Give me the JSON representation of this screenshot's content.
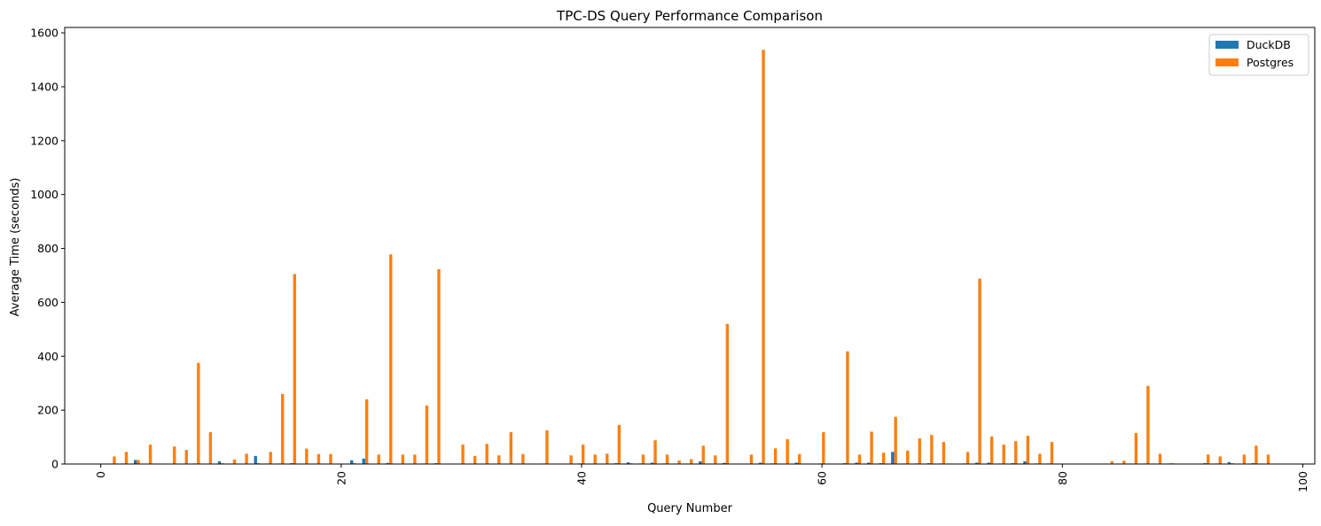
{
  "chart_data": {
    "type": "bar",
    "title": "TPC-DS Query Performance Comparison",
    "xlabel": "Query Number",
    "ylabel": "Average Time (seconds)",
    "xlim": [
      -3,
      101
    ],
    "ylim": [
      0,
      1620
    ],
    "xticks": [
      0,
      20,
      40,
      60,
      80,
      100
    ],
    "yticks": [
      0,
      200,
      400,
      600,
      800,
      1000,
      1200,
      1400,
      1600
    ],
    "legend_position": "top-right",
    "series": [
      {
        "name": "DuckDB",
        "color": "#1f77b4",
        "points": [
          [
            1,
            1
          ],
          [
            2,
            2
          ],
          [
            3,
            15
          ],
          [
            4,
            1
          ],
          [
            6,
            1
          ],
          [
            7,
            1
          ],
          [
            8,
            2
          ],
          [
            9,
            1
          ],
          [
            10,
            10
          ],
          [
            11,
            1
          ],
          [
            12,
            1
          ],
          [
            13,
            30
          ],
          [
            14,
            2
          ],
          [
            15,
            2
          ],
          [
            16,
            3
          ],
          [
            17,
            1
          ],
          [
            18,
            1
          ],
          [
            19,
            1
          ],
          [
            21,
            14
          ],
          [
            22,
            20
          ],
          [
            23,
            1
          ],
          [
            24,
            4
          ],
          [
            25,
            1
          ],
          [
            26,
            1
          ],
          [
            27,
            2
          ],
          [
            28,
            3
          ],
          [
            30,
            1
          ],
          [
            31,
            1
          ],
          [
            32,
            1
          ],
          [
            33,
            1
          ],
          [
            34,
            1
          ],
          [
            35,
            1
          ],
          [
            37,
            2
          ],
          [
            39,
            1
          ],
          [
            40,
            2
          ],
          [
            41,
            1
          ],
          [
            42,
            1
          ],
          [
            43,
            3
          ],
          [
            44,
            6
          ],
          [
            45,
            2
          ],
          [
            46,
            5
          ],
          [
            47,
            2
          ],
          [
            48,
            1
          ],
          [
            49,
            1
          ],
          [
            50,
            10
          ],
          [
            51,
            1
          ],
          [
            52,
            4
          ],
          [
            54,
            1
          ],
          [
            55,
            5
          ],
          [
            56,
            2
          ],
          [
            57,
            1
          ],
          [
            58,
            5
          ],
          [
            60,
            2
          ],
          [
            62,
            3
          ],
          [
            63,
            5
          ],
          [
            64,
            5
          ],
          [
            65,
            3
          ],
          [
            66,
            45
          ],
          [
            67,
            2
          ],
          [
            68,
            2
          ],
          [
            69,
            3
          ],
          [
            70,
            2
          ],
          [
            72,
            2
          ],
          [
            73,
            5
          ],
          [
            74,
            5
          ],
          [
            75,
            2
          ],
          [
            76,
            3
          ],
          [
            77,
            10
          ],
          [
            78,
            2
          ],
          [
            79,
            2
          ],
          [
            84,
            1
          ],
          [
            85,
            1
          ],
          [
            86,
            1
          ],
          [
            87,
            2
          ],
          [
            88,
            1
          ],
          [
            89,
            2
          ],
          [
            92,
            3
          ],
          [
            93,
            2
          ],
          [
            94,
            7
          ],
          [
            95,
            1
          ],
          [
            96,
            3
          ],
          [
            97,
            1
          ]
        ]
      },
      {
        "name": "Postgres",
        "color": "#ff7f0e",
        "points": [
          [
            1,
            28
          ],
          [
            2,
            45
          ],
          [
            3,
            15
          ],
          [
            4,
            72
          ],
          [
            6,
            65
          ],
          [
            7,
            52
          ],
          [
            8,
            375
          ],
          [
            9,
            118
          ],
          [
            10,
            3
          ],
          [
            11,
            17
          ],
          [
            12,
            38
          ],
          [
            13,
            3
          ],
          [
            14,
            45
          ],
          [
            15,
            260
          ],
          [
            16,
            705
          ],
          [
            17,
            57
          ],
          [
            18,
            37
          ],
          [
            19,
            37
          ],
          [
            21,
            3
          ],
          [
            22,
            240
          ],
          [
            23,
            35
          ],
          [
            24,
            778
          ],
          [
            25,
            35
          ],
          [
            26,
            35
          ],
          [
            27,
            217
          ],
          [
            28,
            723
          ],
          [
            30,
            72
          ],
          [
            31,
            30
          ],
          [
            32,
            75
          ],
          [
            33,
            32
          ],
          [
            34,
            118
          ],
          [
            35,
            37
          ],
          [
            37,
            125
          ],
          [
            39,
            32
          ],
          [
            40,
            72
          ],
          [
            41,
            35
          ],
          [
            42,
            38
          ],
          [
            43,
            145
          ],
          [
            44,
            3
          ],
          [
            45,
            35
          ],
          [
            46,
            88
          ],
          [
            47,
            35
          ],
          [
            48,
            13
          ],
          [
            49,
            18
          ],
          [
            50,
            68
          ],
          [
            51,
            32
          ],
          [
            52,
            520
          ],
          [
            54,
            35
          ],
          [
            55,
            1537
          ],
          [
            56,
            58
          ],
          [
            57,
            92
          ],
          [
            58,
            37
          ],
          [
            60,
            118
          ],
          [
            62,
            418
          ],
          [
            63,
            35
          ],
          [
            64,
            120
          ],
          [
            65,
            42
          ],
          [
            66,
            175
          ],
          [
            67,
            50
          ],
          [
            68,
            95
          ],
          [
            69,
            108
          ],
          [
            70,
            82
          ],
          [
            72,
            45
          ],
          [
            73,
            688
          ],
          [
            74,
            102
          ],
          [
            75,
            72
          ],
          [
            76,
            85
          ],
          [
            77,
            105
          ],
          [
            78,
            38
          ],
          [
            79,
            82
          ],
          [
            84,
            10
          ],
          [
            85,
            12
          ],
          [
            86,
            115
          ],
          [
            87,
            290
          ],
          [
            88,
            38
          ],
          [
            89,
            3
          ],
          [
            92,
            35
          ],
          [
            93,
            28
          ],
          [
            94,
            3
          ],
          [
            95,
            35
          ],
          [
            96,
            68
          ],
          [
            97,
            35
          ]
        ]
      }
    ]
  }
}
